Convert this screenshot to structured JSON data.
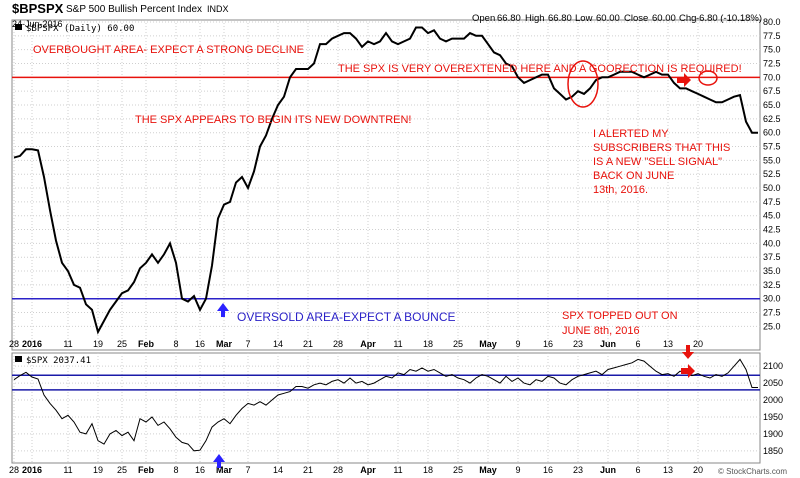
{
  "header": {
    "symbol": "$BPSPX",
    "description": "S&P 500 Bullish Percent Index",
    "exchange": "INDX",
    "date": "24-Jun-2016",
    "quote": {
      "open_label": "Open",
      "open": "66.80",
      "high_label": "High",
      "high": "66.80",
      "low_label": "Low",
      "low": "60.00",
      "close_label": "Close",
      "close": "60.00",
      "chg_label": "Chg",
      "chg": "-6.80 (-10.18%)"
    },
    "copyright": "© StockCharts.com"
  },
  "annotations": {
    "overbought": "OVERBOUGHT AREA- EXPECT A STRONG DECLINE",
    "overextended": "THE SPX IS VERY OVEREXTENED HERE AND A GOORECTION IS REQUIRED!",
    "downtrend": "THE SPX APPEARS TO BEGIN ITS NEW DOWNTREN!",
    "alert": [
      "I ALERTED MY",
      "SUBSCRIBERS THAT THIS",
      "IS A NEW \"SELL SIGNAL\"",
      "BACK ON JUNE",
      "13th, 2016."
    ],
    "oversold": "OVERSOLD AREA-EXPECT A BOUNCE",
    "topped": [
      "SPX TOPPED OUT ON",
      "JUNE 8th, 2016"
    ]
  },
  "colors": {
    "line": "#000000",
    "grid": "#cfcfcf",
    "annotation": "#e8120c",
    "threshold_high": "#e8120c",
    "threshold_low": "#2b22c8",
    "spx_band": "#1a1aa8",
    "arrow_blue": "#2b22ff",
    "arrow_red": "#e8120c"
  },
  "chart_data": [
    {
      "type": "line",
      "legend": "$BPSPX (Daily) 60.00",
      "ylim": [
        22,
        80
      ],
      "yticks": [
        "25.0",
        "27.5",
        "30.0",
        "32.5",
        "35.0",
        "37.5",
        "40.0",
        "42.5",
        "45.0",
        "47.5",
        "50.0",
        "52.5",
        "55.0",
        "57.5",
        "60.0",
        "62.5",
        "65.0",
        "67.5",
        "70.0",
        "72.5",
        "75.0",
        "77.5",
        "80.0"
      ],
      "reference_lines": [
        70,
        30
      ],
      "x_tick_labels": [
        "28",
        "2016",
        "11",
        "19",
        "25",
        "Feb",
        "8",
        "16",
        "Mar",
        "7",
        "14",
        "21",
        "28",
        "Apr",
        "11",
        "18",
        "25",
        "May",
        "9",
        "16",
        "23",
        "Jun",
        "6",
        "13",
        "20"
      ],
      "x": [
        1,
        2,
        3,
        4,
        5,
        6,
        7,
        8,
        9,
        10,
        11,
        12,
        13,
        14,
        15,
        16,
        17,
        18,
        19,
        20,
        21,
        22,
        23,
        24,
        25,
        26,
        27,
        28,
        29,
        30,
        31,
        32,
        33,
        34,
        35,
        36,
        37,
        38,
        39,
        40,
        41,
        42,
        43,
        44,
        45,
        46,
        47,
        48,
        49,
        50,
        51,
        52,
        53,
        54,
        55,
        56,
        57,
        58,
        59,
        60,
        61,
        62,
        63,
        64,
        65,
        66,
        67,
        68,
        69,
        70,
        71,
        72,
        73,
        74,
        75,
        76,
        77,
        78,
        79,
        80,
        81,
        82,
        83,
        84,
        85,
        86,
        87,
        88,
        89,
        90,
        91,
        92,
        93,
        94,
        95,
        96,
        97,
        98,
        99,
        100,
        101,
        102,
        103,
        104,
        105,
        106,
        107,
        108,
        109,
        110,
        111,
        112,
        113,
        114,
        115,
        116,
        117,
        118,
        119,
        120,
        121,
        122,
        123,
        124,
        125
      ],
      "values": [
        55.5,
        55.8,
        57.0,
        57.0,
        56.8,
        52.0,
        46.0,
        40.5,
        36.5,
        35.0,
        32.5,
        32.0,
        29.0,
        28.0,
        24.0,
        26.0,
        28.0,
        29.5,
        31.0,
        31.5,
        33.0,
        35.5,
        36.5,
        38.0,
        36.5,
        38.0,
        40.0,
        36.5,
        30.0,
        29.5,
        30.5,
        28.0,
        30.0,
        36.0,
        44.5,
        47.0,
        47.5,
        51.0,
        52.0,
        50.0,
        53.0,
        57.5,
        59.5,
        62.5,
        65.0,
        66.5,
        70.0,
        71.5,
        71.5,
        71.5,
        72.5,
        76.0,
        76.0,
        77.0,
        77.5,
        78.0,
        78.0,
        77.0,
        75.5,
        76.5,
        76.0,
        76.5,
        78.0,
        76.5,
        76.0,
        76.5,
        77.0,
        79.0,
        79.0,
        78.0,
        78.5,
        77.0,
        76.5,
        77.0,
        77.0,
        77.0,
        78.0,
        77.5,
        77.5,
        76.0,
        74.5,
        74.0,
        72.5,
        72.0,
        70.0,
        69.0,
        69.5,
        70.0,
        70.5,
        70.5,
        68.0,
        67.0,
        66.0,
        66.5,
        67.5,
        67.0,
        68.0,
        69.5,
        70.0,
        70.0,
        70.5,
        71.0,
        71.0,
        71.0,
        70.5,
        70.0,
        70.5,
        71.0,
        70.5,
        70.5,
        69.0,
        68.0,
        68.0,
        67.5,
        67.0,
        66.5,
        66.0,
        65.5,
        65.5,
        66.0,
        66.5,
        66.8,
        62.0,
        60.0,
        60.0
      ]
    },
    {
      "type": "line",
      "legend": "$SPX 2037.41",
      "ylim": [
        1820,
        2130
      ],
      "yticks": [
        "1850",
        "1900",
        "1950",
        "2000",
        "2050",
        "2100"
      ],
      "reference_lines": [
        2073,
        2030
      ],
      "x_tick_labels": [
        "28",
        "2016",
        "11",
        "19",
        "25",
        "Feb",
        "8",
        "16",
        "Mar",
        "7",
        "14",
        "21",
        "28",
        "Apr",
        "11",
        "18",
        "25",
        "May",
        "9",
        "16",
        "23",
        "Jun",
        "6",
        "13",
        "20"
      ],
      "x": [
        1,
        2,
        3,
        4,
        5,
        6,
        7,
        8,
        9,
        10,
        11,
        12,
        13,
        14,
        15,
        16,
        17,
        18,
        19,
        20,
        21,
        22,
        23,
        24,
        25,
        26,
        27,
        28,
        29,
        30,
        31,
        32,
        33,
        34,
        35,
        36,
        37,
        38,
        39,
        40,
        41,
        42,
        43,
        44,
        45,
        46,
        47,
        48,
        49,
        50,
        51,
        52,
        53,
        54,
        55,
        56,
        57,
        58,
        59,
        60,
        61,
        62,
        63,
        64,
        65,
        66,
        67,
        68,
        69,
        70,
        71,
        72,
        73,
        74,
        75,
        76,
        77,
        78,
        79,
        80,
        81,
        82,
        83,
        84,
        85,
        86,
        87,
        88,
        89,
        90,
        91,
        92,
        93,
        94,
        95,
        96,
        97,
        98,
        99,
        100,
        101,
        102,
        103,
        104,
        105,
        106,
        107,
        108,
        109,
        110,
        111,
        112,
        113,
        114,
        115,
        116,
        117,
        118,
        119,
        120,
        121,
        122,
        123,
        124,
        125
      ],
      "values": [
        2060,
        2072,
        2082,
        2068,
        2062,
        2015,
        1990,
        1970,
        1945,
        1955,
        1935,
        1905,
        1900,
        1930,
        1880,
        1870,
        1900,
        1910,
        1895,
        1905,
        1880,
        1945,
        1935,
        1950,
        1925,
        1935,
        1915,
        1890,
        1875,
        1870,
        1850,
        1852,
        1880,
        1920,
        1935,
        1945,
        1930,
        1955,
        1975,
        1990,
        1985,
        1995,
        1985,
        2000,
        2015,
        2020,
        2025,
        2040,
        2040,
        2035,
        2045,
        2050,
        2045,
        2055,
        2060,
        2050,
        2065,
        2050,
        2055,
        2045,
        2050,
        2060,
        2070,
        2065,
        2080,
        2075,
        2090,
        2085,
        2095,
        2085,
        2090,
        2080,
        2070,
        2075,
        2065,
        2060,
        2050,
        2065,
        2075,
        2070,
        2060,
        2050,
        2070,
        2055,
        2065,
        2050,
        2045,
        2060,
        2055,
        2070,
        2065,
        2050,
        2045,
        2060,
        2070,
        2075,
        2080,
        2085,
        2075,
        2090,
        2095,
        2100,
        2105,
        2110,
        2120,
        2115,
        2100,
        2085,
        2075,
        2078,
        2070,
        2085,
        2080,
        2072,
        2078,
        2070,
        2065,
        2075,
        2070,
        2080,
        2100,
        2120,
        2090,
        2037,
        2037
      ]
    }
  ]
}
